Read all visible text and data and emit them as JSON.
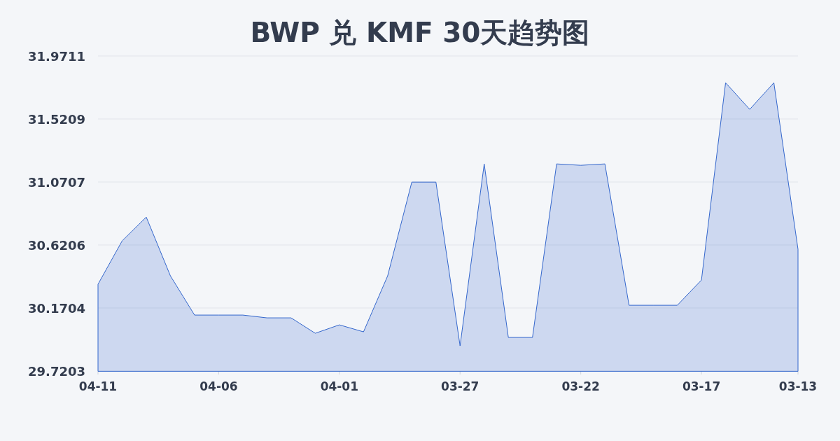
{
  "chart_data": {
    "type": "area",
    "title": "BWP 兑 KMF 30天趋势图",
    "categories": [
      "04-11",
      null,
      null,
      null,
      null,
      "04-06",
      null,
      null,
      null,
      null,
      "04-01",
      null,
      null,
      null,
      null,
      "03-27",
      null,
      null,
      null,
      null,
      "03-22",
      null,
      null,
      null,
      null,
      "03-17",
      null,
      null,
      null,
      "03-13"
    ],
    "values": [
      30.34,
      30.65,
      30.82,
      30.4,
      30.12,
      30.12,
      30.12,
      30.1,
      30.1,
      29.99,
      30.05,
      30.0,
      30.4,
      31.07,
      31.07,
      29.9,
      31.2,
      29.96,
      29.96,
      31.2,
      31.19,
      31.2,
      30.19,
      30.19,
      30.19,
      30.37,
      31.78,
      31.59,
      31.78,
      30.59
    ],
    "color": "#3366cc",
    "ylim": [
      29.7203,
      31.9711
    ],
    "yticks": [
      29.7203,
      30.1704,
      30.6206,
      31.0707,
      31.5209,
      31.9711
    ],
    "grid": "y"
  }
}
